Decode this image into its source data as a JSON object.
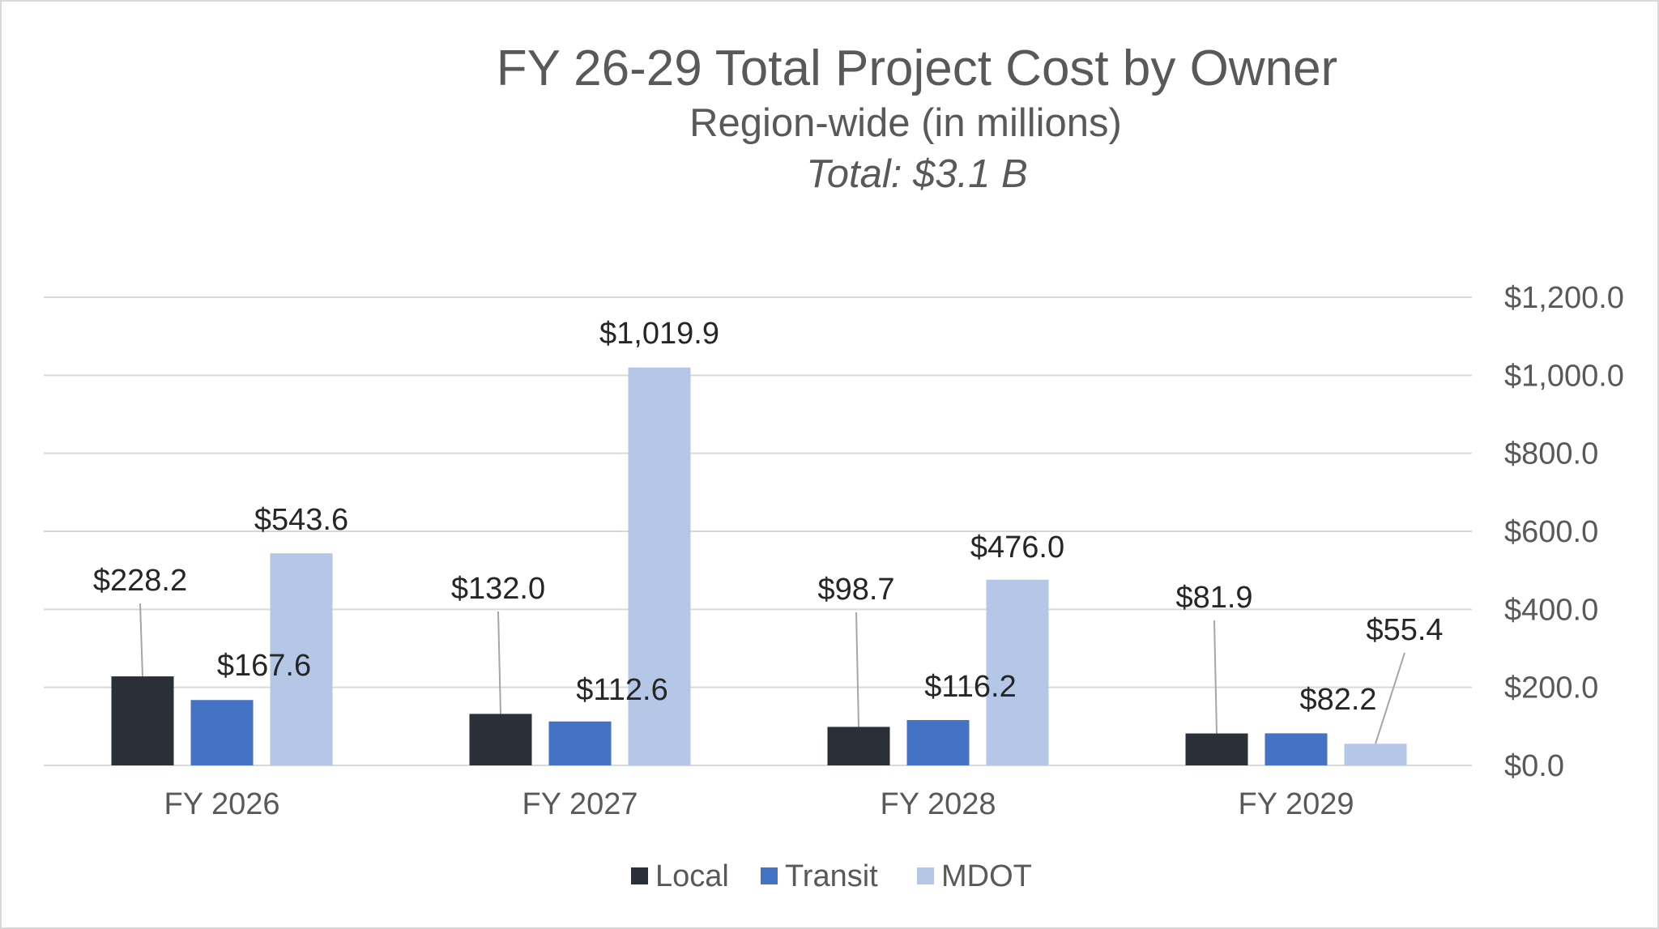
{
  "chart_data": {
    "type": "bar",
    "title": "FY 26-29 Total Project Cost by Owner",
    "subtitle": "Region-wide (in millions)",
    "subtitle2": "Total: $3.1 B",
    "categories": [
      "FY 2026",
      "FY 2027",
      "FY 2028",
      "FY 2029"
    ],
    "series": [
      {
        "name": "Local",
        "color": "#2b3038",
        "values": [
          228.2,
          132.0,
          98.7,
          81.9
        ],
        "labels": [
          "$228.2",
          "$132.0",
          "$98.7",
          "$81.9"
        ]
      },
      {
        "name": "Transit",
        "color": "#4472c4",
        "values": [
          167.6,
          112.6,
          116.2,
          82.2
        ],
        "labels": [
          "$167.6",
          "$112.6",
          "$116.2",
          "$82.2"
        ]
      },
      {
        "name": "MDOT",
        "color": "#b4c7e7",
        "values": [
          543.6,
          1019.9,
          476.0,
          55.4
        ],
        "labels": [
          "$543.6",
          "$1,019.9",
          "$476.0",
          "$55.4"
        ]
      }
    ],
    "ylim": [
      0,
      1200
    ],
    "yticks": [
      0,
      200,
      400,
      600,
      800,
      1000,
      1200
    ],
    "ytick_labels": [
      "$0.0",
      "$200.0",
      "$400.0",
      "$600.0",
      "$800.0",
      "$1,000.0",
      "$1,200.0"
    ],
    "y_axis_position": "right",
    "grid": true,
    "legend_position": "bottom"
  }
}
